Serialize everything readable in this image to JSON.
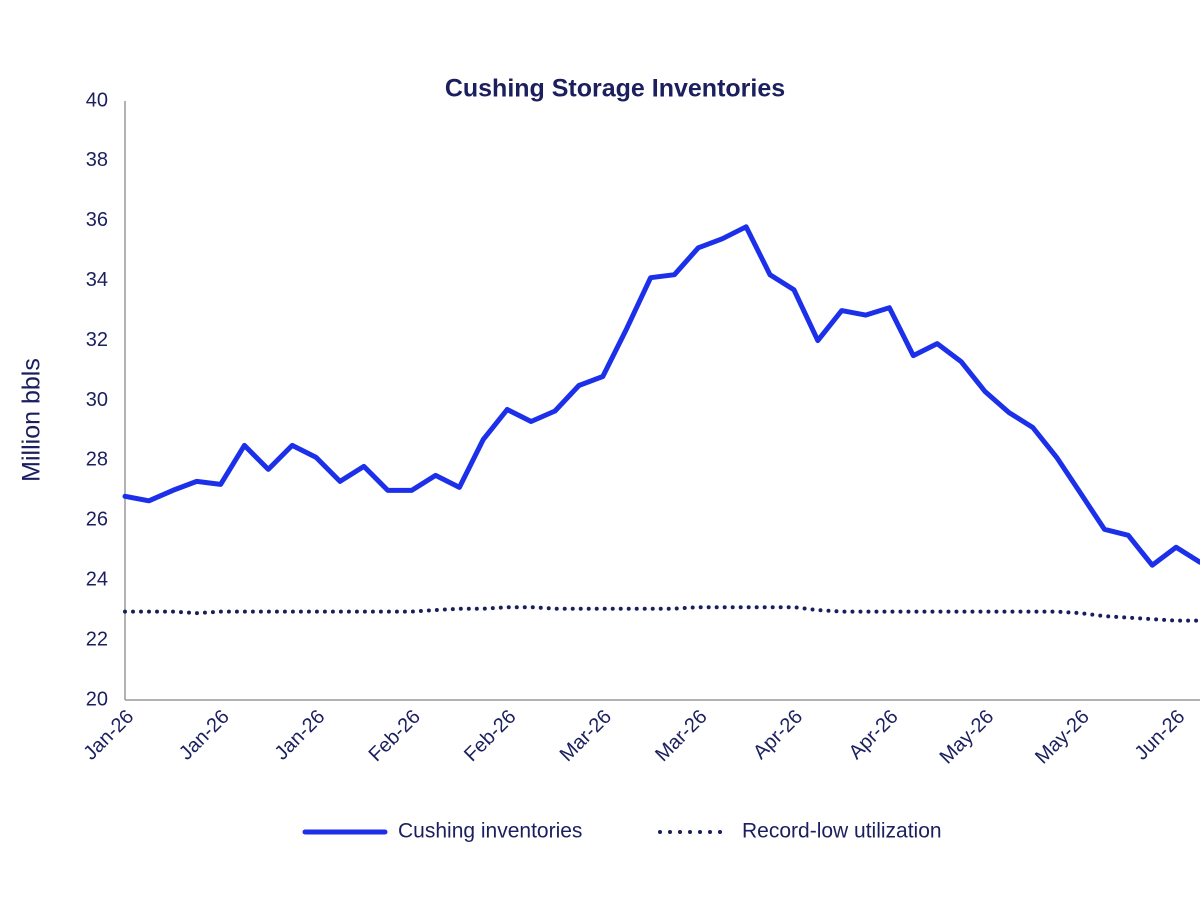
{
  "chart_data": {
    "type": "line",
    "title": "Cushing Storage Inventories",
    "y_label": "Million bbls",
    "categories": [
      "Jan-26",
      null,
      null,
      null,
      "Jan-26",
      null,
      null,
      null,
      "Jan-26",
      null,
      null,
      null,
      "Feb-26",
      null,
      null,
      null,
      "Feb-26",
      null,
      null,
      null,
      "Mar-26",
      null,
      null,
      null,
      "Mar-26",
      null,
      null,
      null,
      "Apr-26",
      null,
      null,
      null,
      "Apr-26",
      null,
      null,
      null,
      "May-26",
      null,
      null,
      null,
      "May-26",
      null,
      null,
      null,
      "Jun-26",
      null
    ],
    "series": [
      {
        "name": "Cushing inventories",
        "color": "#1c30ea",
        "style": "solid",
        "values": [
          26.8,
          26.65,
          27.0,
          27.3,
          27.2,
          28.5,
          27.7,
          28.5,
          28.1,
          27.3,
          27.8,
          27.0,
          27.0,
          27.5,
          27.1,
          28.7,
          29.7,
          29.3,
          29.65,
          30.5,
          30.8,
          32.4,
          34.1,
          34.2,
          35.1,
          35.4,
          35.8,
          34.2,
          33.7,
          32.0,
          33.0,
          32.85,
          33.1,
          31.5,
          31.9,
          31.3,
          30.3,
          29.6,
          29.1,
          28.1,
          26.9,
          25.7,
          25.5,
          24.5,
          25.1,
          24.6
        ]
      },
      {
        "name": "Record-low utilization",
        "color": "#1a1f5c",
        "style": "dotted",
        "values": [
          22.95,
          22.95,
          22.95,
          22.9,
          22.95,
          22.95,
          22.95,
          22.95,
          22.95,
          22.95,
          22.95,
          22.95,
          22.95,
          23.0,
          23.05,
          23.05,
          23.1,
          23.1,
          23.05,
          23.05,
          23.05,
          23.05,
          23.05,
          23.05,
          23.1,
          23.1,
          23.1,
          23.1,
          23.1,
          23.0,
          22.95,
          22.95,
          22.95,
          22.95,
          22.95,
          22.95,
          22.95,
          22.95,
          22.95,
          22.95,
          22.9,
          22.8,
          22.75,
          22.7,
          22.65,
          22.65
        ]
      }
    ],
    "ylim": [
      20,
      40
    ],
    "yticks": [
      20,
      22,
      24,
      26,
      28,
      30,
      32,
      34,
      36,
      38,
      40
    ],
    "grid": false,
    "legend": "bottom"
  }
}
